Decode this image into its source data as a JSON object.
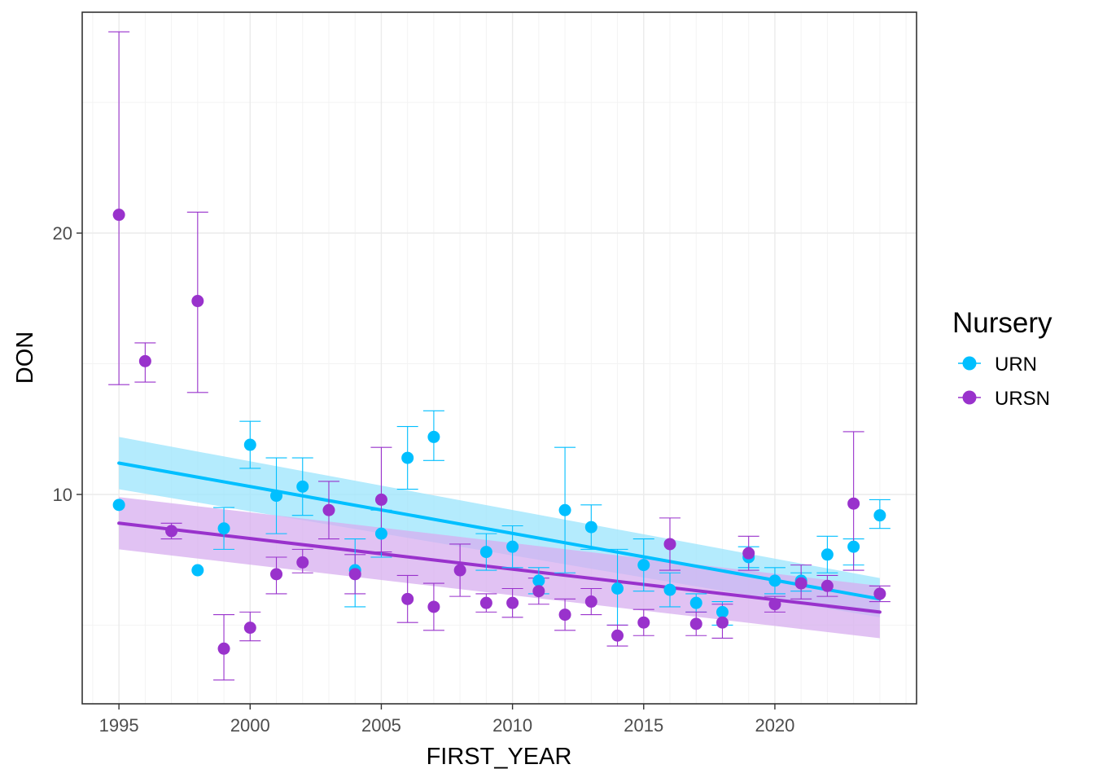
{
  "chart_data": {
    "type": "scatter",
    "title": "",
    "xlabel": "FIRST_YEAR",
    "ylabel": "DON",
    "xlim": [
      1993.6,
      2025.4
    ],
    "ylim": [
      1.99,
      28.45
    ],
    "x_ticks": [
      1995,
      2000,
      2005,
      2010,
      2015,
      2020
    ],
    "x_tick_labels": [
      "1995",
      "2000",
      "2005",
      "2010",
      "2015",
      "2020"
    ],
    "y_ticks": [
      10,
      20
    ],
    "y_tick_labels": [
      "10",
      "20"
    ],
    "grid": true,
    "legend": {
      "title": "Nursery",
      "placement": "right",
      "entries": [
        "URN",
        "URSN"
      ]
    },
    "series": [
      {
        "name": "URN",
        "color": "#00BFFF",
        "ribbon_color": "#9BE4FC",
        "fit": {
          "x": [
            1995,
            2024
          ],
          "y": [
            11.2,
            6.0
          ]
        },
        "band": {
          "x": [
            1995,
            2024
          ],
          "lower": [
            10.2,
            5.3
          ],
          "upper": [
            12.2,
            6.8
          ]
        },
        "points": [
          {
            "x": 1995,
            "y": 9.6
          },
          {
            "x": 1998,
            "y": 7.1
          },
          {
            "x": 1999,
            "y": 8.7,
            "lo": 7.9,
            "hi": 9.5
          },
          {
            "x": 2000,
            "y": 11.9,
            "lo": 11.0,
            "hi": 12.8
          },
          {
            "x": 2001,
            "y": 9.95,
            "lo": 8.5,
            "hi": 11.4
          },
          {
            "x": 2002,
            "y": 10.3,
            "lo": 9.2,
            "hi": 11.4
          },
          {
            "x": 2004,
            "y": 7.1,
            "lo": 5.7,
            "hi": 8.3
          },
          {
            "x": 2005,
            "y": 8.5,
            "lo": 7.6,
            "hi": 9.4
          },
          {
            "x": 2006,
            "y": 11.4,
            "lo": 10.2,
            "hi": 12.6
          },
          {
            "x": 2007,
            "y": 12.2,
            "lo": 11.3,
            "hi": 13.2
          },
          {
            "x": 2009,
            "y": 7.8,
            "lo": 7.1,
            "hi": 8.5
          },
          {
            "x": 2010,
            "y": 8.0,
            "lo": 7.2,
            "hi": 8.8
          },
          {
            "x": 2011,
            "y": 6.7,
            "lo": 6.2,
            "hi": 7.2
          },
          {
            "x": 2012,
            "y": 9.4,
            "lo": 7.0,
            "hi": 11.8
          },
          {
            "x": 2013,
            "y": 8.75,
            "lo": 7.9,
            "hi": 9.6
          },
          {
            "x": 2014,
            "y": 6.4,
            "lo": 5.0,
            "hi": 7.9
          },
          {
            "x": 2015,
            "y": 7.3,
            "lo": 6.3,
            "hi": 8.3
          },
          {
            "x": 2016,
            "y": 6.35,
            "lo": 5.7,
            "hi": 7.0
          },
          {
            "x": 2017,
            "y": 5.85,
            "lo": 5.5,
            "hi": 6.2
          },
          {
            "x": 2018,
            "y": 5.5,
            "lo": 5.0,
            "hi": 5.9
          },
          {
            "x": 2019,
            "y": 7.6,
            "lo": 7.2,
            "hi": 8.0
          },
          {
            "x": 2020,
            "y": 6.7,
            "lo": 6.2,
            "hi": 7.2
          },
          {
            "x": 2021,
            "y": 6.7,
            "lo": 6.3,
            "hi": 7.0
          },
          {
            "x": 2022,
            "y": 7.7,
            "lo": 7.0,
            "hi": 8.4
          },
          {
            "x": 2023,
            "y": 8.0,
            "lo": 7.3,
            "hi": 8.3
          },
          {
            "x": 2024,
            "y": 9.2,
            "lo": 8.7,
            "hi": 9.8
          }
        ]
      },
      {
        "name": "URSN",
        "color": "#9932CC",
        "ribbon_color": "#D7AEEF",
        "fit": {
          "x": [
            1995,
            2024
          ],
          "y": [
            8.9,
            5.5
          ]
        },
        "band": {
          "x": [
            1995,
            2024
          ],
          "lower": [
            7.9,
            4.5
          ],
          "upper": [
            9.9,
            6.5
          ]
        },
        "points": [
          {
            "x": 1995,
            "y": 20.7,
            "lo": 14.2,
            "hi": 27.7
          },
          {
            "x": 1996,
            "y": 15.1,
            "lo": 14.3,
            "hi": 15.8
          },
          {
            "x": 1997,
            "y": 8.6,
            "lo": 8.3,
            "hi": 8.9
          },
          {
            "x": 1998,
            "y": 17.4,
            "lo": 13.9,
            "hi": 20.8
          },
          {
            "x": 1999,
            "y": 4.1,
            "lo": 2.9,
            "hi": 5.4
          },
          {
            "x": 2000,
            "y": 4.9,
            "lo": 4.4,
            "hi": 5.5
          },
          {
            "x": 2001,
            "y": 6.95,
            "lo": 6.2,
            "hi": 7.6
          },
          {
            "x": 2002,
            "y": 7.4,
            "lo": 7.0,
            "hi": 7.9
          },
          {
            "x": 2003,
            "y": 9.4,
            "lo": 8.3,
            "hi": 10.5
          },
          {
            "x": 2004,
            "y": 6.95,
            "lo": 6.2,
            "hi": 7.7
          },
          {
            "x": 2005,
            "y": 9.8,
            "lo": 7.8,
            "hi": 11.8
          },
          {
            "x": 2006,
            "y": 6.0,
            "lo": 5.1,
            "hi": 6.9
          },
          {
            "x": 2007,
            "y": 5.7,
            "lo": 4.8,
            "hi": 6.6
          },
          {
            "x": 2008,
            "y": 7.1,
            "lo": 6.1,
            "hi": 8.1
          },
          {
            "x": 2009,
            "y": 5.85,
            "lo": 5.5,
            "hi": 6.2
          },
          {
            "x": 2010,
            "y": 5.85,
            "lo": 5.3,
            "hi": 6.4
          },
          {
            "x": 2011,
            "y": 6.3,
            "lo": 5.8,
            "hi": 6.8
          },
          {
            "x": 2012,
            "y": 5.4,
            "lo": 4.8,
            "hi": 6.0
          },
          {
            "x": 2013,
            "y": 5.9,
            "lo": 5.4,
            "hi": 6.4
          },
          {
            "x": 2014,
            "y": 4.6,
            "lo": 4.2,
            "hi": 5.0
          },
          {
            "x": 2015,
            "y": 5.1,
            "lo": 4.6,
            "hi": 5.6
          },
          {
            "x": 2016,
            "y": 8.1,
            "lo": 7.1,
            "hi": 9.1
          },
          {
            "x": 2017,
            "y": 5.05,
            "lo": 4.6,
            "hi": 5.5
          },
          {
            "x": 2018,
            "y": 5.1,
            "lo": 4.5,
            "hi": 5.8
          },
          {
            "x": 2019,
            "y": 7.75,
            "lo": 7.1,
            "hi": 8.4
          },
          {
            "x": 2020,
            "y": 5.8,
            "lo": 5.5,
            "hi": 6.1
          },
          {
            "x": 2021,
            "y": 6.6,
            "lo": 6.0,
            "hi": 7.3
          },
          {
            "x": 2022,
            "y": 6.5,
            "lo": 6.1,
            "hi": 6.9
          },
          {
            "x": 2023,
            "y": 9.65,
            "lo": 7.1,
            "hi": 12.4
          },
          {
            "x": 2024,
            "y": 6.2,
            "lo": 5.9,
            "hi": 6.5
          }
        ]
      }
    ]
  }
}
